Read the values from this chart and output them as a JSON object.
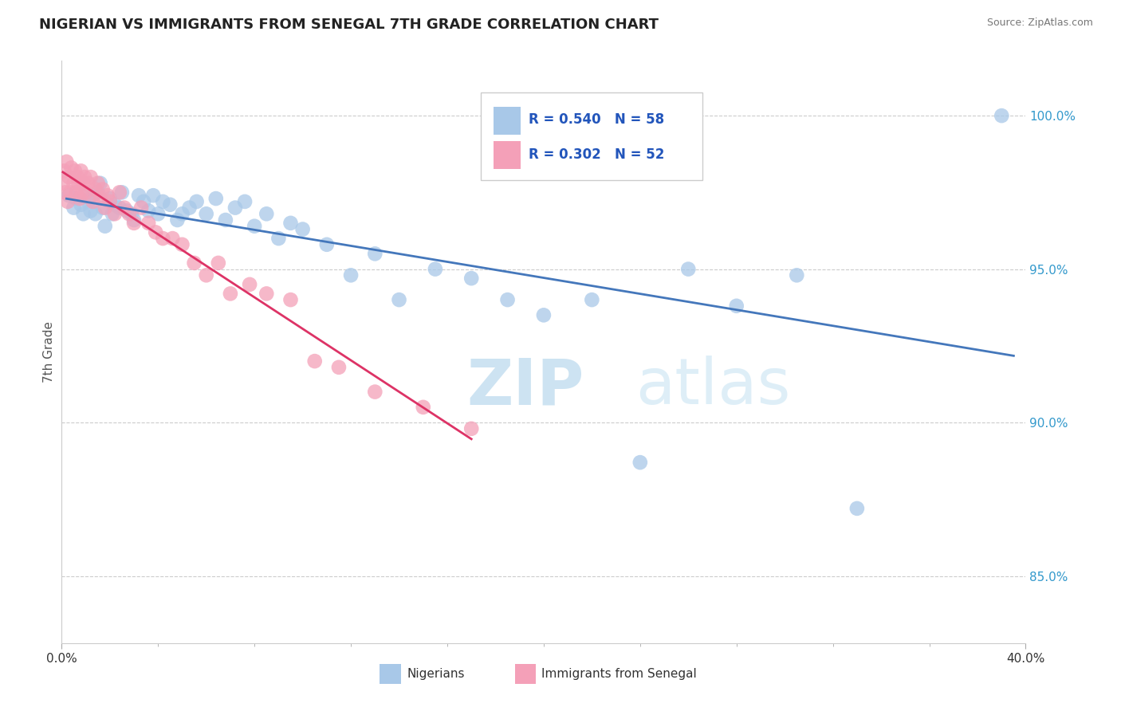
{
  "title": "NIGERIAN VS IMMIGRANTS FROM SENEGAL 7TH GRADE CORRELATION CHART",
  "source": "Source: ZipAtlas.com",
  "ylabel": "7th Grade",
  "ylabel_right_ticks": [
    "100.0%",
    "95.0%",
    "90.0%",
    "85.0%"
  ],
  "ylabel_right_vals": [
    1.0,
    0.95,
    0.9,
    0.85
  ],
  "watermark_zip": "ZIP",
  "watermark_atlas": "atlas",
  "legend_blue_r": "R = 0.540",
  "legend_blue_n": "N = 58",
  "legend_pink_r": "R = 0.302",
  "legend_pink_n": "N = 52",
  "blue_color": "#a8c8e8",
  "pink_color": "#f4a0b8",
  "blue_line_color": "#4477bb",
  "pink_line_color": "#dd3366",
  "background_color": "#ffffff",
  "nigerians_label": "Nigerians",
  "senegal_label": "Immigrants from Senegal",
  "blue_x": [
    0.3,
    0.5,
    0.6,
    0.8,
    0.9,
    1.0,
    1.1,
    1.2,
    1.3,
    1.4,
    1.5,
    1.6,
    1.7,
    1.8,
    2.0,
    2.1,
    2.2,
    2.4,
    2.5,
    2.7,
    2.9,
    3.0,
    3.2,
    3.4,
    3.6,
    3.8,
    4.0,
    4.2,
    4.5,
    4.8,
    5.0,
    5.3,
    5.6,
    6.0,
    6.4,
    6.8,
    7.2,
    7.6,
    8.0,
    8.5,
    9.0,
    9.5,
    10.0,
    11.0,
    12.0,
    13.0,
    14.0,
    15.5,
    17.0,
    18.5,
    20.0,
    22.0,
    24.0,
    26.0,
    28.0,
    30.5,
    33.0,
    39.0
  ],
  "blue_y": [
    0.974,
    0.97,
    0.973,
    0.971,
    0.968,
    0.975,
    0.972,
    0.969,
    0.974,
    0.968,
    0.975,
    0.978,
    0.97,
    0.964,
    0.973,
    0.968,
    0.971,
    0.97,
    0.975,
    0.969,
    0.968,
    0.966,
    0.974,
    0.972,
    0.969,
    0.974,
    0.968,
    0.972,
    0.971,
    0.966,
    0.968,
    0.97,
    0.972,
    0.968,
    0.973,
    0.966,
    0.97,
    0.972,
    0.964,
    0.968,
    0.96,
    0.965,
    0.963,
    0.958,
    0.948,
    0.955,
    0.94,
    0.95,
    0.947,
    0.94,
    0.935,
    0.94,
    0.887,
    0.95,
    0.938,
    0.948,
    0.872,
    1.0
  ],
  "pink_x": [
    0.05,
    0.1,
    0.15,
    0.2,
    0.25,
    0.3,
    0.35,
    0.4,
    0.5,
    0.55,
    0.6,
    0.65,
    0.7,
    0.75,
    0.8,
    0.85,
    0.9,
    0.95,
    1.0,
    1.1,
    1.2,
    1.3,
    1.4,
    1.5,
    1.6,
    1.7,
    1.8,
    1.9,
    2.0,
    2.2,
    2.4,
    2.6,
    2.8,
    3.0,
    3.3,
    3.6,
    3.9,
    4.2,
    4.6,
    5.0,
    5.5,
    6.0,
    6.5,
    7.0,
    7.8,
    8.5,
    9.5,
    10.5,
    11.5,
    13.0,
    15.0,
    17.0
  ],
  "pink_y": [
    0.978,
    0.982,
    0.975,
    0.985,
    0.972,
    0.98,
    0.975,
    0.983,
    0.978,
    0.982,
    0.975,
    0.98,
    0.978,
    0.973,
    0.982,
    0.975,
    0.978,
    0.98,
    0.975,
    0.978,
    0.98,
    0.972,
    0.976,
    0.978,
    0.973,
    0.976,
    0.97,
    0.974,
    0.972,
    0.968,
    0.975,
    0.97,
    0.968,
    0.965,
    0.97,
    0.965,
    0.962,
    0.96,
    0.96,
    0.958,
    0.952,
    0.948,
    0.952,
    0.942,
    0.945,
    0.942,
    0.94,
    0.92,
    0.918,
    0.91,
    0.905,
    0.898
  ]
}
